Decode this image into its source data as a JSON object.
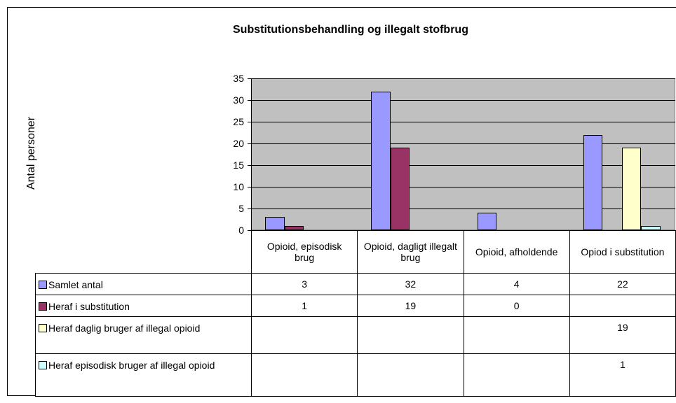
{
  "chart_data": {
    "type": "bar",
    "title": "Substitutionsbehandling og illegalt stofbrug",
    "y_axis_label": "Antal personer",
    "categories": [
      "Opioid, episodisk brug",
      "Opioid, dagligt illegalt brug",
      "Opioid, afholdende",
      "Opiod i substitution"
    ],
    "series": [
      {
        "name": "Samlet antal",
        "color": "#9999ff",
        "values": [
          3,
          32,
          4,
          22
        ]
      },
      {
        "name": "Heraf i substitution",
        "color": "#993366",
        "values": [
          1,
          19,
          0,
          null
        ]
      },
      {
        "name": "Heraf daglig bruger af illegal opioid",
        "color": "#ffffcc",
        "values": [
          null,
          null,
          null,
          19
        ]
      },
      {
        "name": "Heraf episodisk bruger af illegal opioid",
        "color": "#ccffff",
        "values": [
          null,
          null,
          null,
          1
        ]
      }
    ],
    "ylim": [
      0,
      35
    ],
    "yticks": [
      0,
      5,
      10,
      15,
      20,
      25,
      30,
      35
    ],
    "grid": true,
    "plot_background": "#c0c0c0"
  }
}
